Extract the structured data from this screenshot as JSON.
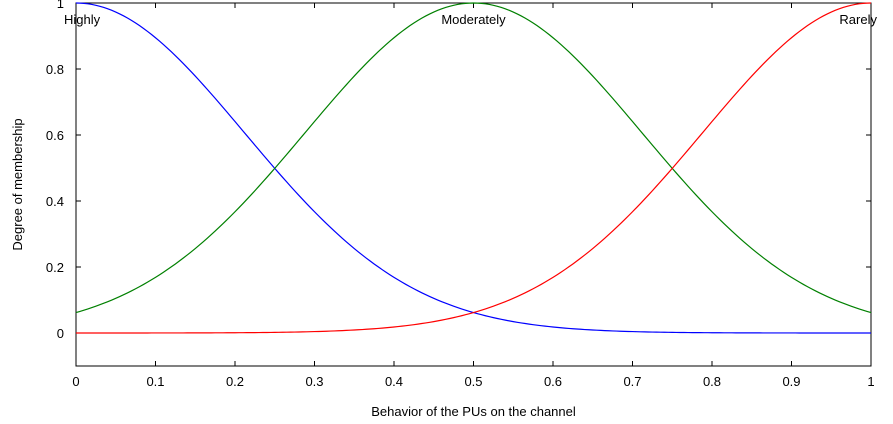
{
  "chart_data": {
    "type": "line",
    "title": "",
    "xlabel": "Behavior of the PUs on the channel",
    "ylabel": "Degree of membership",
    "xlim": [
      0,
      1
    ],
    "ylim": [
      -0.1,
      1.0
    ],
    "xticks": [
      0,
      0.1,
      0.2,
      0.3,
      0.4,
      0.5,
      0.6,
      0.7,
      0.8,
      0.9,
      1
    ],
    "xtick_labels": [
      "0",
      "0.1",
      "0.2",
      "0.3",
      "0.4",
      "0.5",
      "0.6",
      "0.7",
      "0.8",
      "0.9",
      "1"
    ],
    "yticks": [
      0,
      0.2,
      0.4,
      0.6,
      0.8,
      1
    ],
    "ytick_labels": [
      "0",
      "0.2",
      "0.4",
      "0.6",
      "0.8",
      "1"
    ],
    "grid": false,
    "legend": "none",
    "series": [
      {
        "name": "Highly",
        "color": "#0000ff",
        "curve": "gaussian",
        "center": 0.0,
        "sigma": 0.212,
        "x": [
          0,
          0.05,
          0.1,
          0.15,
          0.2,
          0.25,
          0.3,
          0.35,
          0.4,
          0.45,
          0.5,
          0.6,
          0.7,
          0.8,
          0.9,
          1.0
        ],
        "y": [
          1.0,
          0.97,
          0.9,
          0.78,
          0.64,
          0.5,
          0.37,
          0.26,
          0.17,
          0.1,
          0.06,
          0.02,
          0.005,
          0.001,
          0.0,
          0.0
        ]
      },
      {
        "name": "Moderately",
        "color": "#008000",
        "curve": "gaussian",
        "center": 0.5,
        "sigma": 0.212,
        "x": [
          0,
          0.1,
          0.2,
          0.3,
          0.4,
          0.5,
          0.6,
          0.7,
          0.8,
          0.9,
          1.0
        ],
        "y": [
          0.06,
          0.17,
          0.37,
          0.64,
          0.9,
          1.0,
          0.9,
          0.64,
          0.37,
          0.17,
          0.06
        ]
      },
      {
        "name": "Rarely",
        "color": "#ff0000",
        "curve": "gaussian",
        "center": 1.0,
        "sigma": 0.212,
        "x": [
          0,
          0.1,
          0.2,
          0.3,
          0.4,
          0.5,
          0.6,
          0.7,
          0.8,
          0.9,
          1.0
        ],
        "y": [
          0.0,
          0.0,
          0.0,
          0.005,
          0.02,
          0.06,
          0.17,
          0.37,
          0.64,
          0.9,
          1.0
        ]
      }
    ]
  }
}
